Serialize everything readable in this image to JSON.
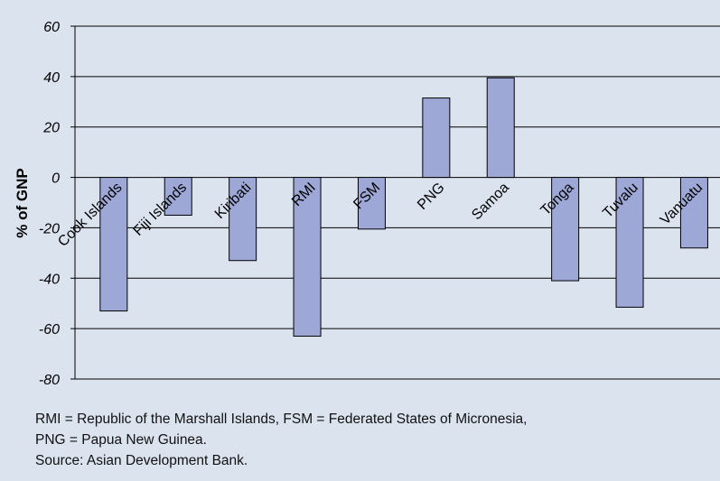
{
  "chart_data": {
    "type": "bar",
    "ylabel": "% of GNP",
    "ylim": [
      -80,
      60
    ],
    "yticks": [
      60,
      40,
      20,
      0,
      -20,
      -40,
      -60,
      -80
    ],
    "grid": true,
    "categories": [
      "Cook Islands",
      "Fiji Islands",
      "Kiribati",
      "RMI",
      "FSM",
      "PNG",
      "Samoa",
      "Tonga",
      "Tuvalu",
      "Vanuatu"
    ],
    "values": [
      -53,
      -15,
      -33,
      -63,
      -20.5,
      31.5,
      39.5,
      -41,
      -51.5,
      -28
    ],
    "bar_color": "#9da8d6",
    "bar_outline": "#000000"
  },
  "notes": {
    "line1": "RMI = Republic of the Marshall Islands, FSM = Federated States of Micronesia,",
    "line2": "PNG = Papua New Guinea.",
    "line3": "Source: Asian Development Bank."
  }
}
